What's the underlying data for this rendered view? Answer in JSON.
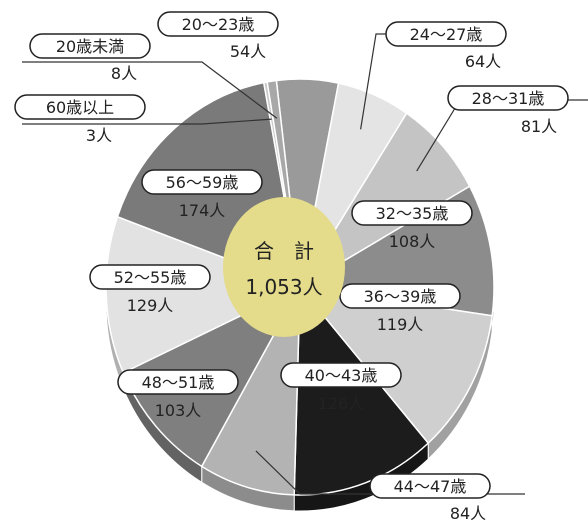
{
  "chart_data": {
    "type": "pie",
    "center_label_1": "合　計",
    "center_label_2": "1,053人",
    "slices": [
      {
        "name": "20〜23歳",
        "value": 54,
        "value_label": "54人",
        "color": "#9a9a9a"
      },
      {
        "name": "24〜27歳",
        "value": 64,
        "value_label": "64人",
        "color": "#e4e4e4"
      },
      {
        "name": "28〜31歳",
        "value": 81,
        "value_label": "81人",
        "color": "#c4c4c4"
      },
      {
        "name": "32〜35歳",
        "value": 108,
        "value_label": "108人",
        "color": "#8c8c8c"
      },
      {
        "name": "36〜39歳",
        "value": 119,
        "value_label": "119人",
        "color": "#cfcfcf"
      },
      {
        "name": "40〜43歳",
        "value": 126,
        "value_label": "126人",
        "color": "#1c1c1c"
      },
      {
        "name": "44〜47歳",
        "value": 84,
        "value_label": "84人",
        "color": "#b3b3b3"
      },
      {
        "name": "48〜51歳",
        "value": 103,
        "value_label": "103人",
        "color": "#7f7f7f"
      },
      {
        "name": "52〜55歳",
        "value": 129,
        "value_label": "129人",
        "color": "#e2e2e2"
      },
      {
        "name": "56〜59歳",
        "value": 174,
        "value_label": "174人",
        "color": "#7a7a7a"
      },
      {
        "name": "60歳以上",
        "value": 3,
        "value_label": "3人",
        "color": "#c8c8c8"
      },
      {
        "name": "20歳未満",
        "value": 8,
        "value_label": "8人",
        "color": "#a8a8a8"
      }
    ]
  }
}
